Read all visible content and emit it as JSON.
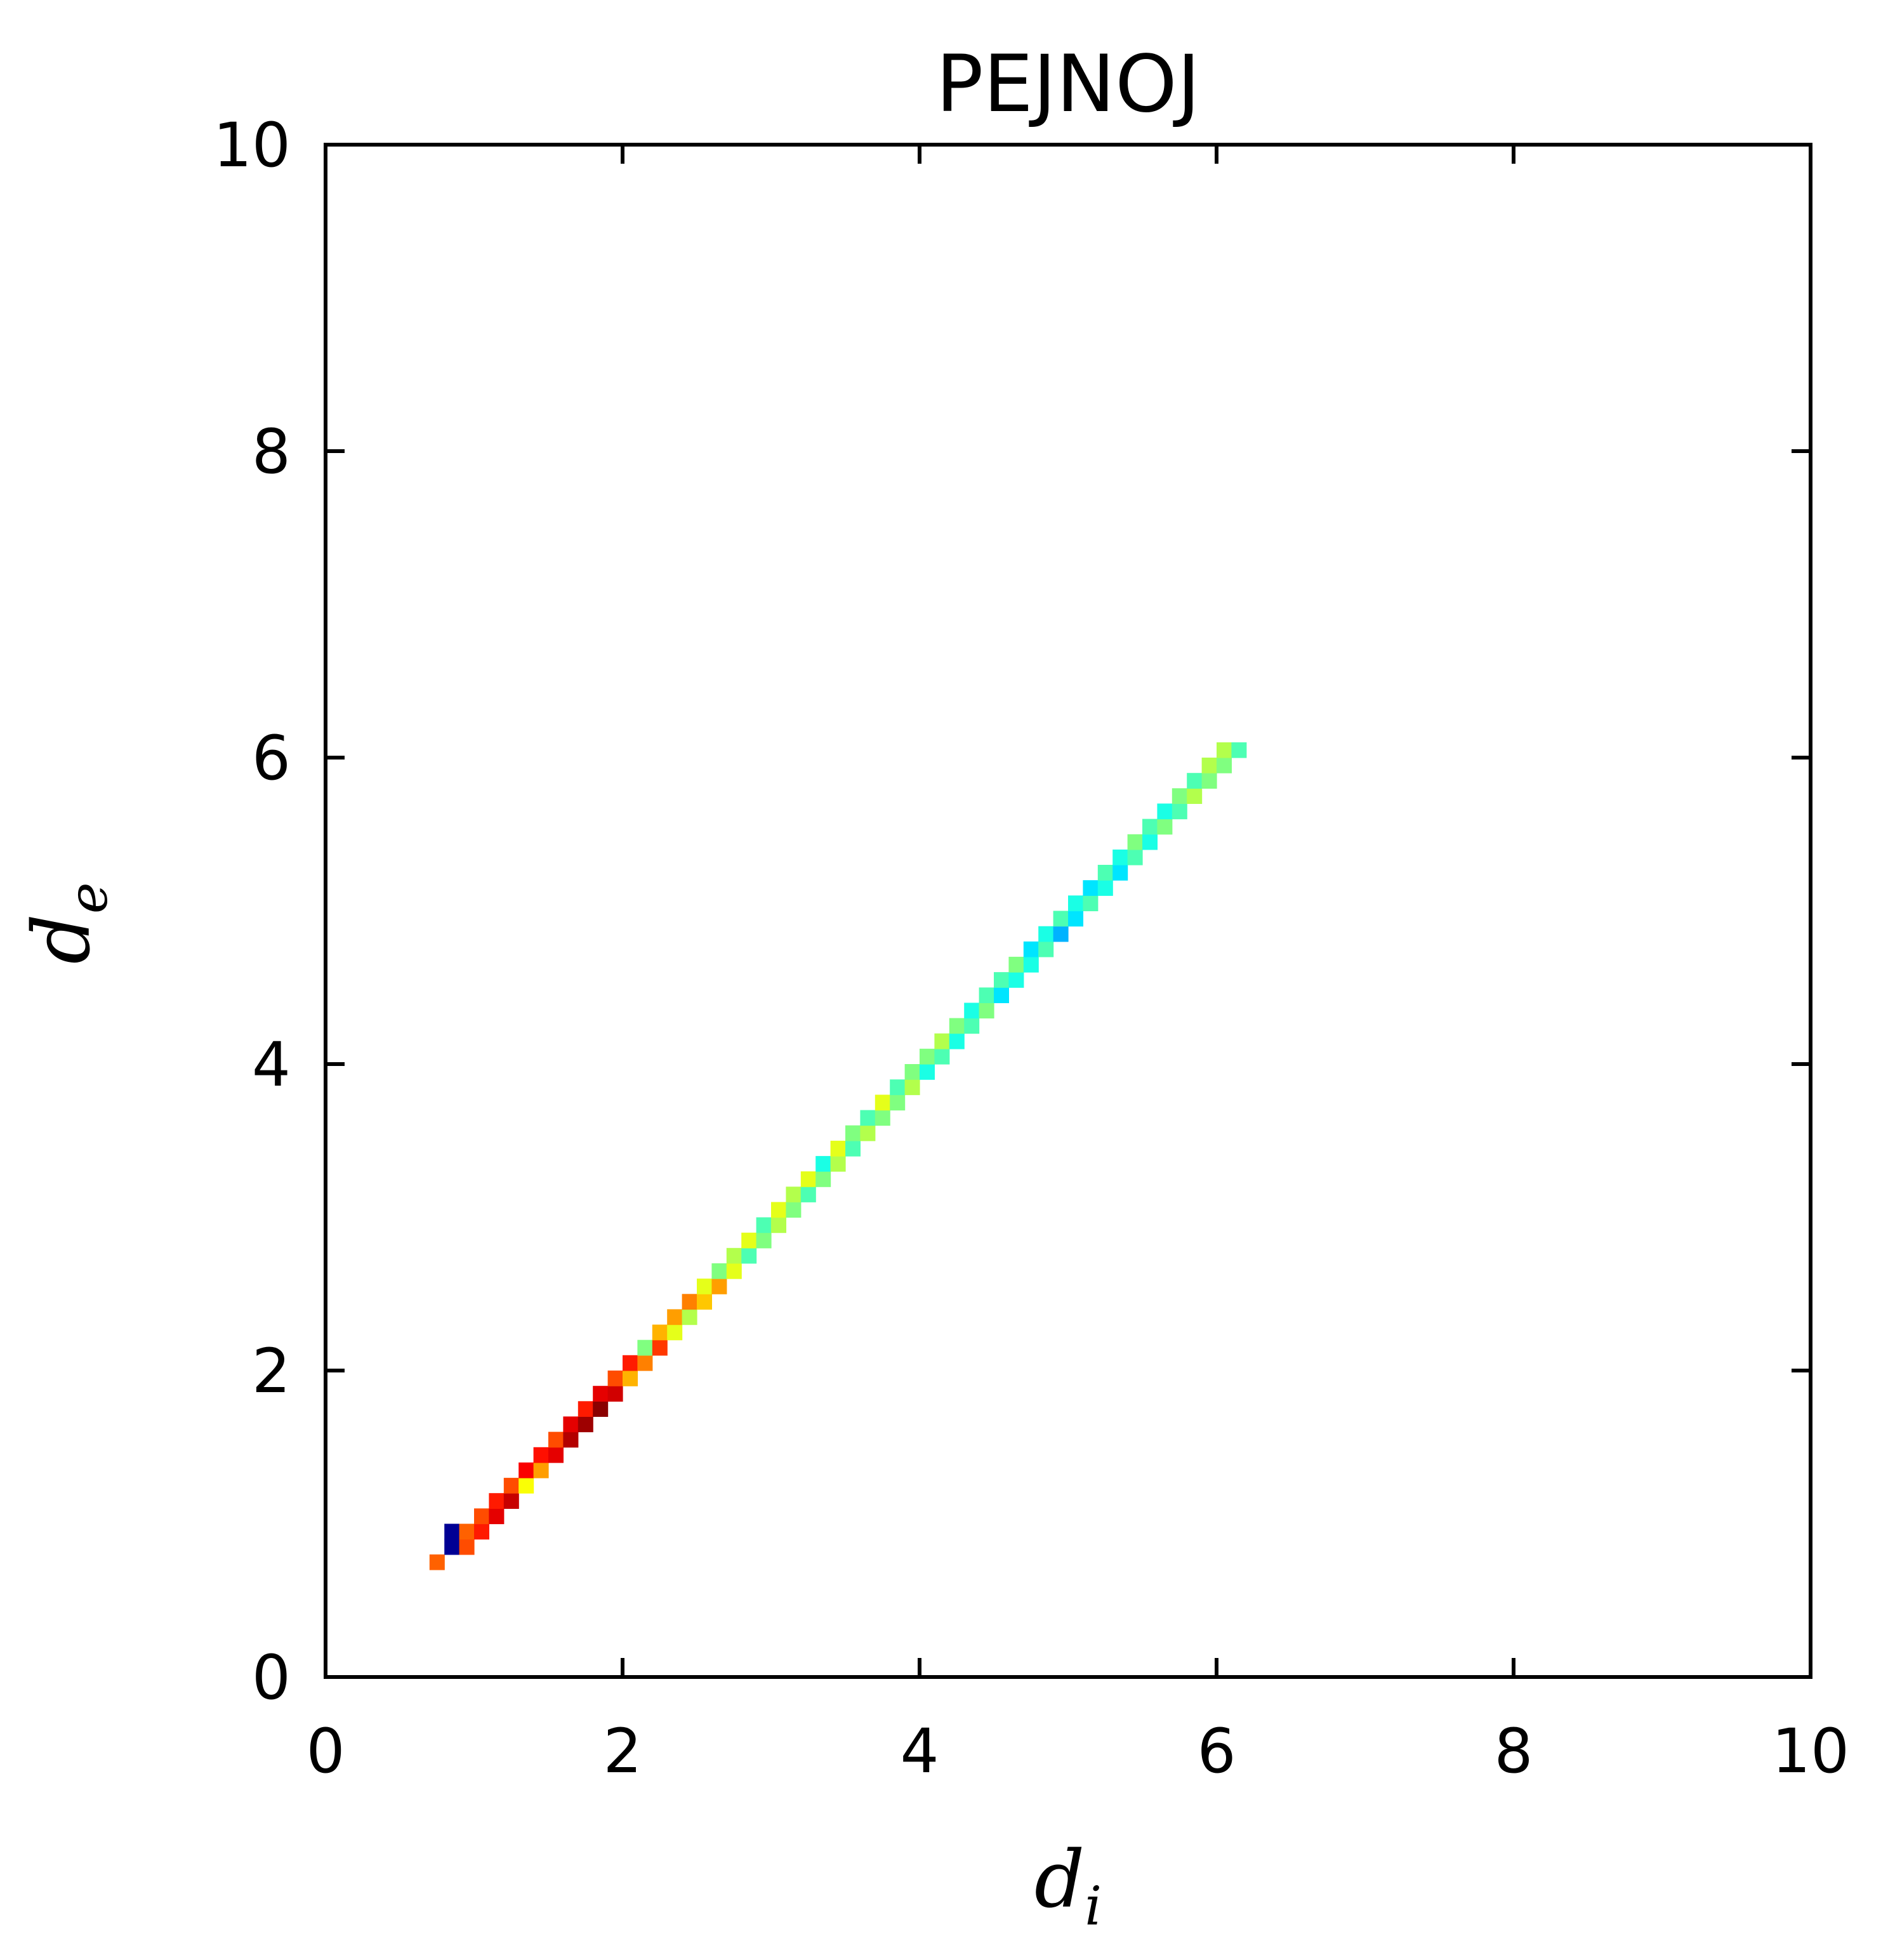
{
  "chart_data": {
    "type": "heatmap",
    "title": "PEJNOJ",
    "xlabel": "d",
    "xlabel_sub": "i",
    "ylabel": "d",
    "ylabel_sub": "e",
    "xlim": [
      0,
      10
    ],
    "ylim": [
      0,
      10
    ],
    "x_ticks": [
      0,
      2,
      4,
      6,
      8,
      10
    ],
    "y_ticks": [
      0,
      2,
      4,
      6,
      8,
      10
    ],
    "x_tick_labels": [
      "0",
      "2",
      "4",
      "6",
      "8",
      "10"
    ],
    "y_tick_labels": [
      "0",
      "2",
      "4",
      "6",
      "8",
      "10"
    ],
    "grid": false,
    "colormap": "jet",
    "bin_size": 0.1,
    "cells": [
      [
        0.75,
        0.75,
        0.78
      ],
      [
        0.85,
        0.85,
        0.02
      ],
      [
        0.85,
        0.95,
        0.02
      ],
      [
        0.95,
        0.85,
        0.8
      ],
      [
        0.95,
        0.95,
        0.78
      ],
      [
        1.05,
        0.95,
        0.85
      ],
      [
        1.05,
        1.05,
        0.8
      ],
      [
        1.15,
        1.05,
        0.9
      ],
      [
        1.15,
        1.15,
        0.85
      ],
      [
        1.25,
        1.15,
        0.93
      ],
      [
        1.25,
        1.25,
        0.8
      ],
      [
        1.35,
        1.25,
        0.62
      ],
      [
        1.35,
        1.35,
        0.88
      ],
      [
        1.45,
        1.35,
        0.72
      ],
      [
        1.45,
        1.45,
        0.86
      ],
      [
        1.55,
        1.45,
        0.9
      ],
      [
        1.55,
        1.55,
        0.8
      ],
      [
        1.65,
        1.55,
        0.95
      ],
      [
        1.65,
        1.65,
        0.9
      ],
      [
        1.75,
        1.65,
        0.97
      ],
      [
        1.75,
        1.75,
        0.85
      ],
      [
        1.85,
        1.75,
        0.99
      ],
      [
        1.85,
        1.85,
        0.9
      ],
      [
        1.95,
        1.85,
        0.92
      ],
      [
        1.95,
        1.95,
        0.8
      ],
      [
        2.05,
        1.95,
        0.7
      ],
      [
        2.05,
        2.05,
        0.85
      ],
      [
        2.15,
        2.05,
        0.75
      ],
      [
        2.15,
        2.15,
        0.5
      ],
      [
        2.25,
        2.15,
        0.82
      ],
      [
        2.25,
        2.25,
        0.7
      ],
      [
        2.35,
        2.25,
        0.6
      ],
      [
        2.35,
        2.35,
        0.72
      ],
      [
        2.45,
        2.35,
        0.55
      ],
      [
        2.45,
        2.45,
        0.75
      ],
      [
        2.55,
        2.45,
        0.68
      ],
      [
        2.55,
        2.55,
        0.6
      ],
      [
        2.65,
        2.55,
        0.72
      ],
      [
        2.65,
        2.65,
        0.5
      ],
      [
        2.75,
        2.65,
        0.6
      ],
      [
        2.75,
        2.75,
        0.55
      ],
      [
        2.85,
        2.75,
        0.45
      ],
      [
        2.85,
        2.85,
        0.6
      ],
      [
        2.95,
        2.85,
        0.5
      ],
      [
        2.95,
        2.95,
        0.45
      ],
      [
        3.05,
        2.95,
        0.55
      ],
      [
        3.05,
        3.05,
        0.6
      ],
      [
        3.15,
        3.05,
        0.5
      ],
      [
        3.15,
        3.15,
        0.55
      ],
      [
        3.25,
        3.15,
        0.45
      ],
      [
        3.25,
        3.25,
        0.6
      ],
      [
        3.35,
        3.25,
        0.5
      ],
      [
        3.35,
        3.35,
        0.4
      ],
      [
        3.45,
        3.35,
        0.55
      ],
      [
        3.45,
        3.45,
        0.6
      ],
      [
        3.55,
        3.45,
        0.45
      ],
      [
        3.55,
        3.55,
        0.5
      ],
      [
        3.65,
        3.55,
        0.55
      ],
      [
        3.65,
        3.65,
        0.45
      ],
      [
        3.75,
        3.65,
        0.5
      ],
      [
        3.75,
        3.75,
        0.6
      ],
      [
        3.85,
        3.75,
        0.5
      ],
      [
        3.85,
        3.85,
        0.45
      ],
      [
        3.95,
        3.85,
        0.55
      ],
      [
        3.95,
        3.95,
        0.5
      ],
      [
        4.05,
        3.95,
        0.4
      ],
      [
        4.05,
        4.05,
        0.5
      ],
      [
        4.15,
        4.05,
        0.45
      ],
      [
        4.15,
        4.15,
        0.55
      ],
      [
        4.25,
        4.15,
        0.4
      ],
      [
        4.25,
        4.25,
        0.5
      ],
      [
        4.35,
        4.25,
        0.45
      ],
      [
        4.35,
        4.35,
        0.4
      ],
      [
        4.45,
        4.35,
        0.5
      ],
      [
        4.45,
        4.45,
        0.45
      ],
      [
        4.55,
        4.45,
        0.35
      ],
      [
        4.55,
        4.55,
        0.45
      ],
      [
        4.65,
        4.55,
        0.4
      ],
      [
        4.65,
        4.65,
        0.5
      ],
      [
        4.75,
        4.65,
        0.4
      ],
      [
        4.75,
        4.75,
        0.35
      ],
      [
        4.85,
        4.75,
        0.45
      ],
      [
        4.85,
        4.85,
        0.4
      ],
      [
        4.95,
        4.85,
        0.3
      ],
      [
        4.95,
        4.95,
        0.45
      ],
      [
        5.05,
        4.95,
        0.35
      ],
      [
        5.05,
        5.05,
        0.4
      ],
      [
        5.15,
        5.05,
        0.45
      ],
      [
        5.15,
        5.15,
        0.35
      ],
      [
        5.25,
        5.15,
        0.4
      ],
      [
        5.25,
        5.25,
        0.45
      ],
      [
        5.35,
        5.25,
        0.35
      ],
      [
        5.35,
        5.35,
        0.4
      ],
      [
        5.45,
        5.35,
        0.45
      ],
      [
        5.45,
        5.45,
        0.5
      ],
      [
        5.55,
        5.45,
        0.4
      ],
      [
        5.55,
        5.55,
        0.45
      ],
      [
        5.65,
        5.55,
        0.5
      ],
      [
        5.65,
        5.65,
        0.4
      ],
      [
        5.75,
        5.65,
        0.45
      ],
      [
        5.75,
        5.75,
        0.5
      ],
      [
        5.85,
        5.75,
        0.55
      ],
      [
        5.85,
        5.85,
        0.45
      ],
      [
        5.95,
        5.85,
        0.5
      ],
      [
        5.95,
        5.95,
        0.55
      ],
      [
        6.05,
        5.95,
        0.5
      ],
      [
        6.05,
        6.05,
        0.55
      ],
      [
        6.15,
        6.05,
        0.45
      ]
    ]
  }
}
